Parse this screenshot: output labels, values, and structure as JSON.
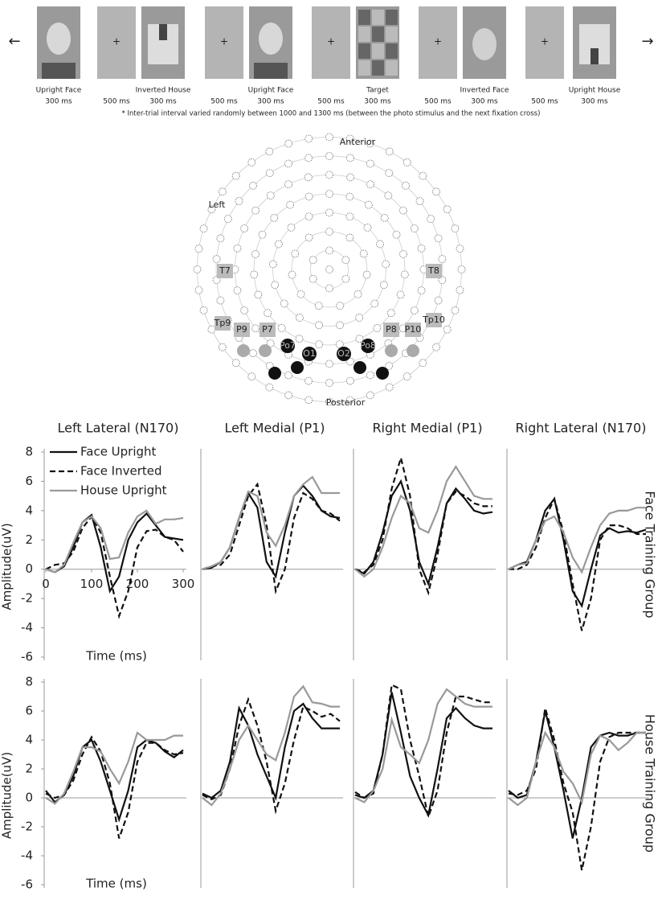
{
  "stimulus": {
    "left_arrow": "←",
    "right_arrow": "→",
    "fixation_symbol": "+",
    "images": [
      {
        "label": "Upright Face",
        "duration": "300 ms"
      },
      {
        "label": "Inverted House",
        "duration": "300 ms"
      },
      {
        "label": "Upright Face",
        "duration": "300 ms"
      },
      {
        "label": "Target",
        "duration": "300 ms"
      },
      {
        "label": "Inverted Face",
        "duration": "300 ms"
      },
      {
        "label": "Upright House",
        "duration": "300 ms"
      }
    ],
    "isi": [
      "500 ms",
      "500 ms",
      "500 ms",
      "500 ms",
      "500 ms"
    ],
    "note": "* Inter-trial interval varied randomly between 1000 and 1300 ms (between the photo stimulus and the next fixation cross)"
  },
  "electrode_map": {
    "anterior": "Anterior",
    "posterior": "Posterior",
    "left": "Left",
    "electrodes": [
      "T7",
      "T8",
      "Tp9",
      "P9",
      "P7",
      "P8",
      "P10",
      "Tp10",
      "Po7",
      "O1",
      "O2",
      "Po8"
    ]
  },
  "chart_data": [
    {
      "type": "line",
      "title": "Left Lateral (N170)",
      "ylabel": "Amplitude(uV)",
      "xlabel": "Time (ms)",
      "legend": "upper left",
      "x": [
        0,
        20,
        40,
        60,
        80,
        100,
        120,
        140,
        160,
        180,
        200,
        220,
        240,
        260,
        280,
        300
      ],
      "xlim": [
        0,
        300
      ],
      "ylim": [
        -6,
        8
      ],
      "xticks": [
        0,
        100,
        200,
        300
      ],
      "yticks": [
        -6,
        -4,
        -2,
        0,
        2,
        4,
        6,
        8
      ],
      "series": [
        {
          "name": "Face Upright",
          "color": "#111111",
          "dash": false,
          "values": [
            0,
            -0.2,
            0.2,
            1.5,
            3.2,
            3.7,
            1.5,
            -1.5,
            -0.5,
            2,
            3.2,
            3.8,
            3,
            2.2,
            2.1,
            2.0
          ]
        },
        {
          "name": "Face Inverted",
          "color": "#111111",
          "dash": true,
          "values": [
            0,
            0.3,
            0.4,
            1.2,
            2.8,
            3.6,
            2.5,
            -0.5,
            -3.2,
            -1.5,
            1.5,
            2.6,
            2.7,
            2.2,
            2,
            1.2
          ]
        },
        {
          "name": "House Upright",
          "color": "#999999",
          "dash": false,
          "values": [
            0,
            -0.2,
            0.3,
            1.8,
            3.2,
            3.6,
            2.8,
            0.7,
            0.8,
            2.5,
            3.6,
            4,
            3.1,
            3.4,
            3.4,
            3.5
          ]
        }
      ]
    },
    {
      "type": "line",
      "title": "Left Medial (P1)",
      "x": [
        0,
        20,
        40,
        60,
        80,
        100,
        120,
        140,
        160,
        180,
        200,
        220,
        240,
        260,
        280,
        300
      ],
      "xlim": [
        0,
        300
      ],
      "ylim": [
        -6,
        8
      ],
      "series": [
        {
          "color": "#111111",
          "dash": false,
          "values": [
            0,
            0.1,
            0.5,
            1.5,
            3.5,
            5.2,
            4.2,
            0.5,
            -0.5,
            2.5,
            5,
            5.7,
            5,
            4,
            3.6,
            3.5
          ]
        },
        {
          "color": "#111111",
          "dash": true,
          "values": [
            0,
            0.2,
            0.3,
            1,
            3,
            5,
            5.8,
            3,
            -1.5,
            0,
            3.5,
            5.2,
            4.8,
            4,
            3.8,
            3.3
          ]
        },
        {
          "color": "#999999",
          "dash": false,
          "values": [
            0,
            0.2,
            0.5,
            1.5,
            3.5,
            5.3,
            5,
            2.5,
            1.6,
            3,
            5,
            5.8,
            6.3,
            5.2,
            5.2,
            5.2
          ]
        }
      ]
    },
    {
      "type": "line",
      "title": "Right Medial (P1)",
      "x": [
        0,
        20,
        40,
        60,
        80,
        100,
        120,
        140,
        160,
        180,
        200,
        220,
        240,
        260,
        280,
        300
      ],
      "xlim": [
        0,
        300
      ],
      "ylim": [
        -6,
        8
      ],
      "series": [
        {
          "color": "#111111",
          "dash": false,
          "values": [
            0,
            -0.3,
            0.5,
            2.5,
            5,
            6,
            4,
            0.5,
            -1,
            1.5,
            4.5,
            5.5,
            4.8,
            4,
            3.8,
            3.9
          ]
        },
        {
          "color": "#111111",
          "dash": true,
          "values": [
            0,
            -0.2,
            0.3,
            2,
            5.5,
            7.6,
            5,
            0,
            -1.6,
            1,
            4.5,
            5.3,
            5,
            4.5,
            4.3,
            4.3
          ]
        },
        {
          "color": "#999999",
          "dash": false,
          "values": [
            0,
            -0.5,
            0,
            1.5,
            3.5,
            5,
            4.5,
            2.8,
            2.5,
            4,
            6,
            7,
            6,
            5,
            4.8,
            4.8
          ]
        }
      ]
    },
    {
      "type": "line",
      "title": "Right Lateral (N170)",
      "row_label": "Face Training Group",
      "x": [
        0,
        20,
        40,
        60,
        80,
        100,
        120,
        140,
        160,
        180,
        200,
        220,
        240,
        260,
        280,
        300
      ],
      "xlim": [
        0,
        300
      ],
      "ylim": [
        -6,
        8
      ],
      "series": [
        {
          "color": "#111111",
          "dash": false,
          "values": [
            0,
            0.3,
            0.5,
            2,
            4,
            4.8,
            2,
            -1.5,
            -2.5,
            0,
            2.3,
            2.8,
            2.5,
            2.6,
            2.5,
            2.7
          ]
        },
        {
          "color": "#111111",
          "dash": true,
          "values": [
            0,
            0,
            0.3,
            1.5,
            3.5,
            4.8,
            2.5,
            -1,
            -4.2,
            -2,
            2,
            3,
            3,
            2.8,
            2.4,
            2.4
          ]
        },
        {
          "color": "#999999",
          "dash": false,
          "values": [
            0,
            0.3,
            0.4,
            2,
            3.3,
            3.6,
            2.5,
            0.8,
            -0.2,
            1.5,
            3,
            3.8,
            4,
            4,
            4.2,
            4.2
          ]
        }
      ]
    },
    {
      "type": "line",
      "ylabel": "Amplitude(uV)",
      "xlabel": "Time (ms)",
      "x": [
        0,
        20,
        40,
        60,
        80,
        100,
        120,
        140,
        160,
        180,
        200,
        220,
        240,
        260,
        280,
        300
      ],
      "xlim": [
        0,
        300
      ],
      "ylim": [
        -6,
        8
      ],
      "yticks": [
        -6,
        -4,
        -2,
        0,
        2,
        4,
        6,
        8
      ],
      "series": [
        {
          "color": "#111111",
          "dash": false,
          "values": [
            0.5,
            -0.3,
            0.2,
            1.5,
            3.5,
            4,
            2.5,
            0.5,
            -1.5,
            0.5,
            3.5,
            4,
            3.8,
            3.2,
            2.8,
            3.3
          ]
        },
        {
          "color": "#111111",
          "dash": true,
          "values": [
            0.3,
            0,
            0.2,
            1.2,
            3,
            4.2,
            3.2,
            1,
            -2.8,
            -1,
            2.5,
            3.8,
            3.8,
            3.3,
            3,
            3.1
          ]
        },
        {
          "color": "#999999",
          "dash": false,
          "values": [
            0,
            -0.4,
            0.3,
            1.8,
            3.5,
            3.5,
            3.2,
            2,
            1,
            2.5,
            4.5,
            4,
            4,
            4,
            4.3,
            4.3
          ]
        }
      ]
    },
    {
      "type": "line",
      "x": [
        0,
        20,
        40,
        60,
        80,
        100,
        120,
        140,
        160,
        180,
        200,
        220,
        240,
        260,
        280,
        300
      ],
      "xlim": [
        0,
        300
      ],
      "ylim": [
        -6,
        8
      ],
      "series": [
        {
          "color": "#111111",
          "dash": false,
          "values": [
            0.3,
            0,
            0.5,
            2.5,
            6.2,
            5,
            3,
            1.5,
            0,
            3.5,
            6,
            6.5,
            5.5,
            4.8,
            4.8,
            4.8
          ]
        },
        {
          "color": "#111111",
          "dash": true,
          "values": [
            0.2,
            -0.1,
            0.2,
            2,
            5,
            6.8,
            5,
            2.5,
            -0.9,
            1,
            4,
            6.3,
            6,
            5.6,
            5.8,
            5.3
          ]
        },
        {
          "color": "#999999",
          "dash": false,
          "values": [
            0,
            -0.5,
            0.3,
            2,
            4,
            5,
            4,
            3,
            2.6,
            4.5,
            7,
            7.7,
            6.6,
            6.5,
            6.3,
            6.3
          ]
        }
      ]
    },
    {
      "type": "line",
      "x": [
        0,
        20,
        40,
        60,
        80,
        100,
        120,
        140,
        160,
        180,
        200,
        220,
        240,
        260,
        280,
        300
      ],
      "xlim": [
        0,
        300
      ],
      "ylim": [
        -6,
        8
      ],
      "series": [
        {
          "color": "#111111",
          "dash": false,
          "values": [
            0.2,
            0,
            0.5,
            3,
            7.3,
            4.5,
            1.5,
            0,
            -1.2,
            2,
            5.5,
            6.2,
            5.5,
            5,
            4.8,
            4.8
          ]
        },
        {
          "color": "#111111",
          "dash": true,
          "values": [
            0.4,
            0,
            0.3,
            3,
            7.8,
            7.5,
            4,
            1.5,
            -1.3,
            0.5,
            4.5,
            7,
            7,
            6.8,
            6.6,
            6.6
          ]
        },
        {
          "color": "#999999",
          "dash": false,
          "values": [
            0,
            -0.3,
            0.5,
            2,
            5.4,
            3.5,
            3,
            2.4,
            4,
            6.5,
            7.5,
            7,
            6.5,
            6.3,
            6.3,
            6.3
          ]
        }
      ]
    },
    {
      "type": "line",
      "row_label": "House Training Group",
      "x": [
        0,
        20,
        40,
        60,
        80,
        100,
        120,
        140,
        160,
        180,
        200,
        220,
        240,
        260,
        280,
        300
      ],
      "xlim": [
        0,
        300
      ],
      "ylim": [
        -6,
        8
      ],
      "series": [
        {
          "color": "#111111",
          "dash": false,
          "values": [
            0.5,
            0,
            0.2,
            2.5,
            6,
            3.5,
            0.5,
            -2.8,
            0,
            3.5,
            4.3,
            4.5,
            4.3,
            4.3,
            4.5,
            4.5
          ]
        },
        {
          "color": "#111111",
          "dash": true,
          "values": [
            0.3,
            0.2,
            0.5,
            2,
            6.2,
            4,
            1,
            -1,
            -5,
            -2,
            2.5,
            4.2,
            4.5,
            4.5,
            4.5,
            4.5
          ]
        },
        {
          "color": "#999999",
          "dash": false,
          "values": [
            0,
            -0.5,
            0,
            2.5,
            4.5,
            3.5,
            1.8,
            1,
            -0.3,
            3,
            4.3,
            4,
            3.3,
            3.8,
            4.5,
            4.5
          ]
        }
      ]
    }
  ]
}
